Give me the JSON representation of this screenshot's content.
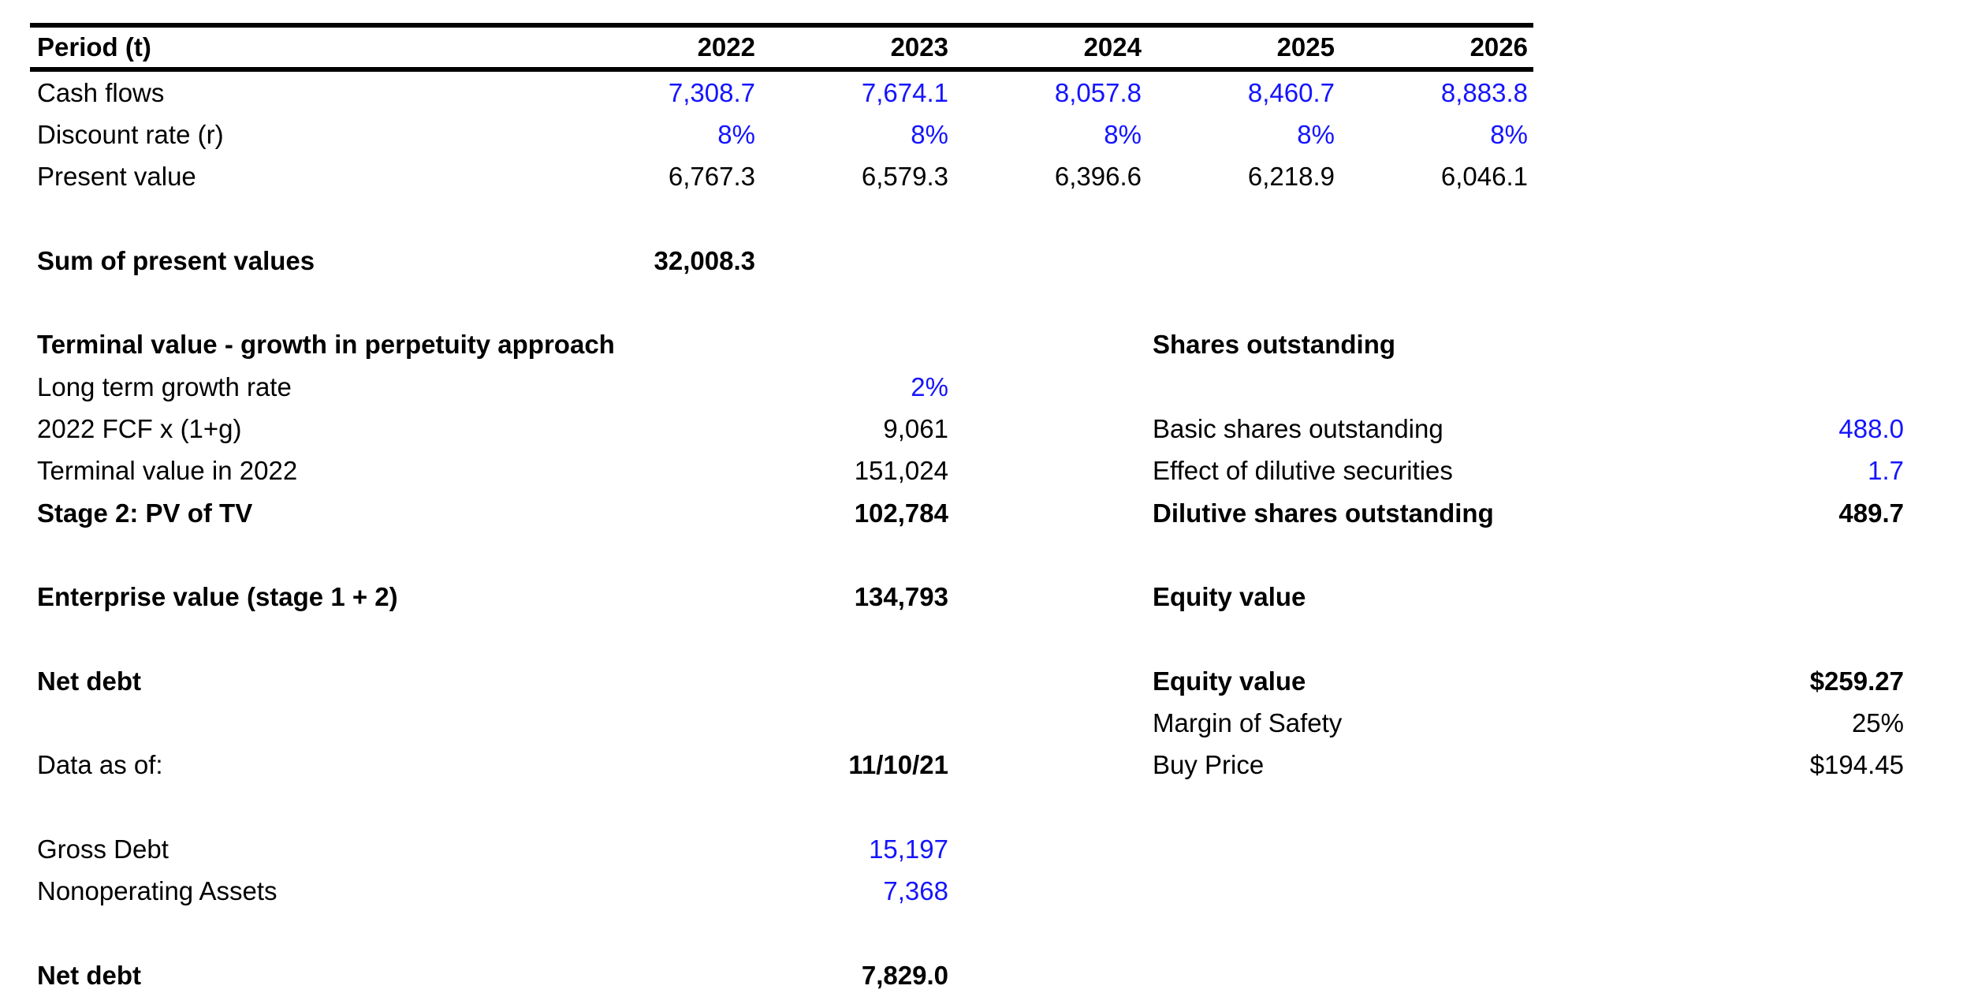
{
  "colors": {
    "input_blue": "#1414ff",
    "text_black": "#000000",
    "background": "#ffffff"
  },
  "dcf_table": {
    "header": {
      "label": "Period (t)",
      "years": [
        "2022",
        "2023",
        "2024",
        "2025",
        "2026"
      ]
    },
    "cash_flows": {
      "label": "Cash flows",
      "values": [
        "7,308.7",
        "7,674.1",
        "8,057.8",
        "8,460.7",
        "8,883.8"
      ]
    },
    "discount_rate": {
      "label": "Discount rate (r)",
      "values": [
        "8%",
        "8%",
        "8%",
        "8%",
        "8%"
      ]
    },
    "present_value": {
      "label": "Present value",
      "values": [
        "6,767.3",
        "6,579.3",
        "6,396.6",
        "6,218.9",
        "6,046.1"
      ]
    },
    "sum_of_present_values": {
      "label": "Sum of present values",
      "value": "32,008.3"
    }
  },
  "terminal_value": {
    "title": "Terminal value - growth in perpetuity approach",
    "long_term_growth_rate": {
      "label": "Long term growth rate",
      "value": "2%"
    },
    "fcf_2022_times_1g": {
      "label": "2022 FCF x (1+g)",
      "value": "9,061"
    },
    "terminal_value_in_2022": {
      "label": "Terminal value in 2022",
      "value": "151,024"
    },
    "stage2_pv_of_tv": {
      "label": "Stage 2: PV of TV",
      "value": "102,784"
    }
  },
  "enterprise_value": {
    "label": "Enterprise value (stage 1 + 2)",
    "value": "134,793"
  },
  "net_debt_section": {
    "title": "Net debt",
    "data_as_of": {
      "label": "Data as of:",
      "value": "11/10/21"
    },
    "gross_debt": {
      "label": "Gross Debt",
      "value": "15,197"
    },
    "nonoperating_assets": {
      "label": "Nonoperating Assets",
      "value": "7,368"
    },
    "net_debt_total": {
      "label": "Net debt",
      "value": "7,829.0"
    }
  },
  "shares_outstanding": {
    "title": "Shares outstanding",
    "basic": {
      "label": "Basic shares outstanding",
      "value": "488.0"
    },
    "dilutive_effect": {
      "label": "Effect of dilutive securities",
      "value": "1.7"
    },
    "dilutive_total": {
      "label": "Dilutive shares outstanding",
      "value": "489.7"
    }
  },
  "equity_value_section": {
    "title": "Equity value",
    "equity_value": {
      "label": "Equity value",
      "value": "$259.27"
    },
    "margin_of_safety": {
      "label": "Margin of Safety",
      "value": "25%"
    },
    "buy_price": {
      "label": "Buy Price",
      "value": "$194.45"
    }
  }
}
